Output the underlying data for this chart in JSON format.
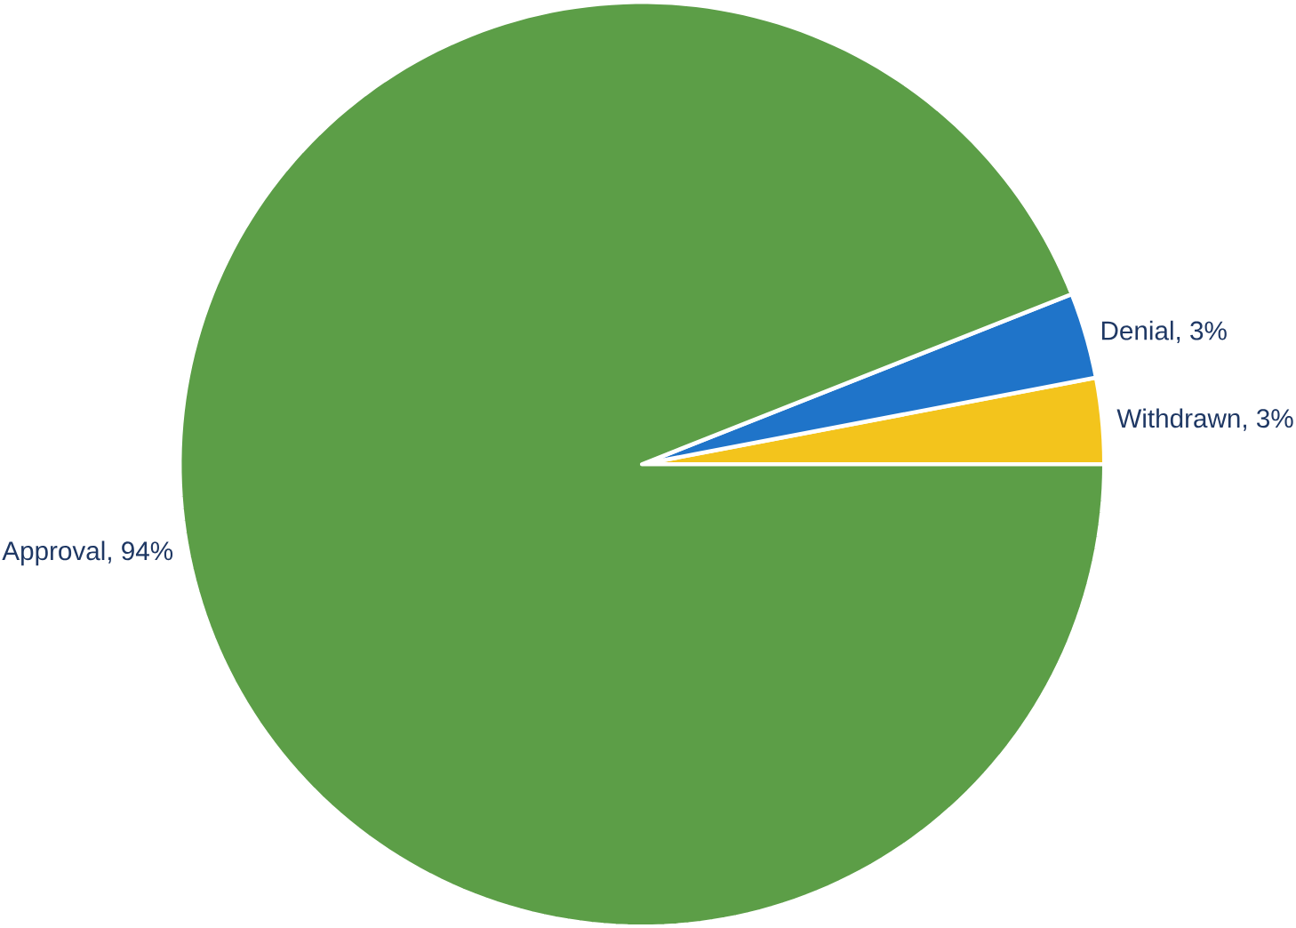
{
  "chart_data": {
    "type": "pie",
    "categories": [
      "Approval, 94%",
      "Denial, 3%",
      "Withdrawn, 3%"
    ],
    "values": [
      94,
      3,
      3
    ],
    "colors": [
      "#5c9e47",
      "#1f74c9",
      "#f3c41c"
    ]
  }
}
